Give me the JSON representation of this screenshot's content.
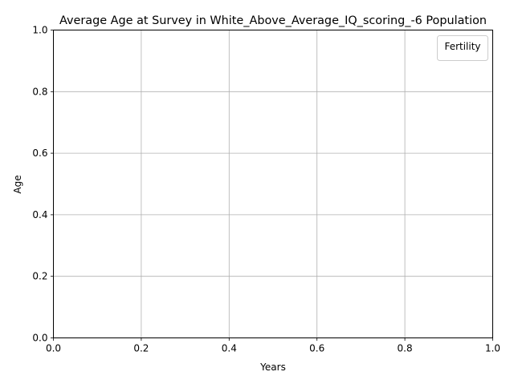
{
  "chart_data": {
    "type": "line",
    "title": "Average Age at Survey in White_Above_Average_IQ_scoring_-6 Population",
    "xlabel": "Years",
    "ylabel": "Age",
    "xlim": [
      0.0,
      1.0
    ],
    "ylim": [
      0.0,
      1.0
    ],
    "x_ticks": [
      "0.0",
      "0.2",
      "0.4",
      "0.6",
      "0.8",
      "1.0"
    ],
    "y_ticks": [
      "0.0",
      "0.2",
      "0.4",
      "0.6",
      "0.8",
      "1.0"
    ],
    "grid": true,
    "legend": {
      "title": "Fertility",
      "placement": "upper right",
      "entries": []
    },
    "series": []
  }
}
